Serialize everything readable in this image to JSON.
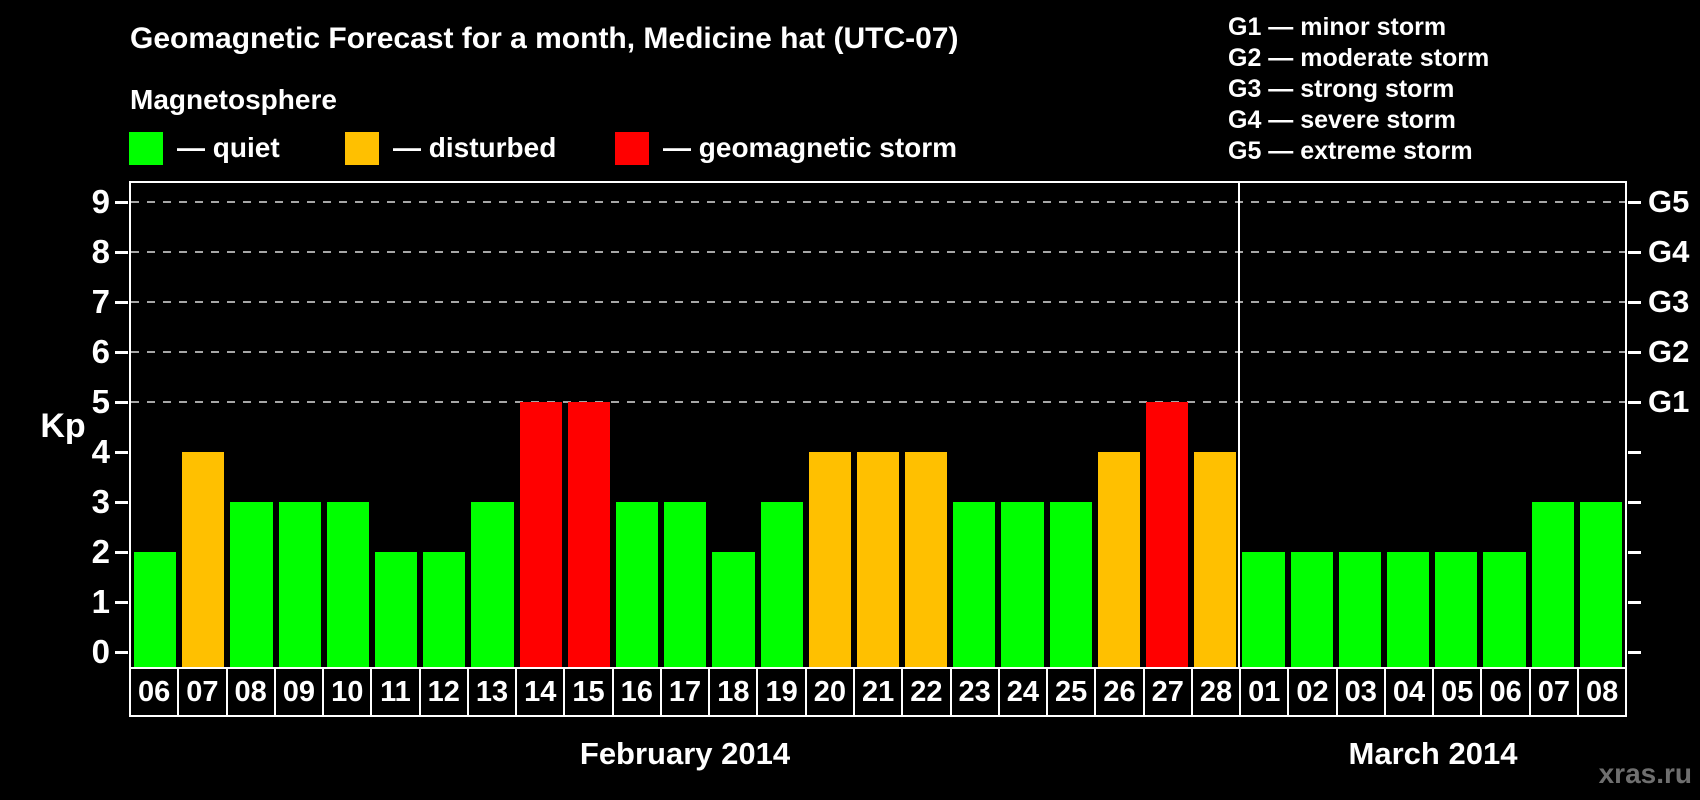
{
  "title": "Geomagnetic Forecast for a month, Medicine hat (UTC-07)",
  "subtitle": "Magnetosphere",
  "legend": {
    "items": [
      {
        "label": "— quiet",
        "state": "quiet",
        "color": "#00ff00"
      },
      {
        "label": "— disturbed",
        "state": "disturbed",
        "color": "#ffc000"
      },
      {
        "label": "— geomagnetic storm",
        "state": "storm",
        "color": "#ff0000"
      }
    ]
  },
  "g_legend": {
    "items": [
      "G1 — minor storm",
      "G2 — moderate storm",
      "G3 — strong storm",
      "G4 — severe storm",
      "G5 — extreme storm"
    ]
  },
  "watermark": "xras.ru",
  "chart_data": {
    "type": "bar",
    "title": "Geomagnetic Forecast for a month, Medicine hat (UTC-07)",
    "ylabel": "Kp",
    "ylim": [
      0,
      9.4
    ],
    "yticks": [
      0,
      1,
      2,
      3,
      4,
      5,
      6,
      7,
      8,
      9
    ],
    "gridlines": [
      5,
      6,
      7,
      8,
      9
    ],
    "grid_style": "dashed gray horizontal lines at Kp 5..9 only",
    "right_axis": [
      {
        "kp": 5,
        "label": "G1"
      },
      {
        "kp": 6,
        "label": "G2"
      },
      {
        "kp": 7,
        "label": "G3"
      },
      {
        "kp": 8,
        "label": "G4"
      },
      {
        "kp": 9,
        "label": "G5"
      }
    ],
    "state_colors": {
      "quiet": "#00ff00",
      "disturbed": "#ffc000",
      "storm": "#ff0000"
    },
    "months": [
      {
        "label": "February 2014",
        "days": 23
      },
      {
        "label": "March 2014",
        "days": 8
      }
    ],
    "bars": [
      {
        "day": "06",
        "kp": 2,
        "state": "quiet"
      },
      {
        "day": "07",
        "kp": 4,
        "state": "disturbed"
      },
      {
        "day": "08",
        "kp": 3,
        "state": "quiet"
      },
      {
        "day": "09",
        "kp": 3,
        "state": "quiet"
      },
      {
        "day": "10",
        "kp": 3,
        "state": "quiet"
      },
      {
        "day": "11",
        "kp": 2,
        "state": "quiet"
      },
      {
        "day": "12",
        "kp": 2,
        "state": "quiet"
      },
      {
        "day": "13",
        "kp": 3,
        "state": "quiet"
      },
      {
        "day": "14",
        "kp": 5,
        "state": "storm"
      },
      {
        "day": "15",
        "kp": 5,
        "state": "storm"
      },
      {
        "day": "16",
        "kp": 3,
        "state": "quiet"
      },
      {
        "day": "17",
        "kp": 3,
        "state": "quiet"
      },
      {
        "day": "18",
        "kp": 2,
        "state": "quiet"
      },
      {
        "day": "19",
        "kp": 3,
        "state": "quiet"
      },
      {
        "day": "20",
        "kp": 4,
        "state": "disturbed"
      },
      {
        "day": "21",
        "kp": 4,
        "state": "disturbed"
      },
      {
        "day": "22",
        "kp": 4,
        "state": "disturbed"
      },
      {
        "day": "23",
        "kp": 3,
        "state": "quiet"
      },
      {
        "day": "24",
        "kp": 3,
        "state": "quiet"
      },
      {
        "day": "25",
        "kp": 3,
        "state": "quiet"
      },
      {
        "day": "26",
        "kp": 4,
        "state": "disturbed"
      },
      {
        "day": "27",
        "kp": 5,
        "state": "storm"
      },
      {
        "day": "28",
        "kp": 4,
        "state": "disturbed"
      },
      {
        "day": "01",
        "kp": 2,
        "state": "quiet"
      },
      {
        "day": "02",
        "kp": 2,
        "state": "quiet"
      },
      {
        "day": "03",
        "kp": 2,
        "state": "quiet"
      },
      {
        "day": "04",
        "kp": 2,
        "state": "quiet"
      },
      {
        "day": "05",
        "kp": 2,
        "state": "quiet"
      },
      {
        "day": "06",
        "kp": 2,
        "state": "quiet"
      },
      {
        "day": "07",
        "kp": 3,
        "state": "quiet"
      },
      {
        "day": "08",
        "kp": 3,
        "state": "quiet"
      }
    ]
  }
}
